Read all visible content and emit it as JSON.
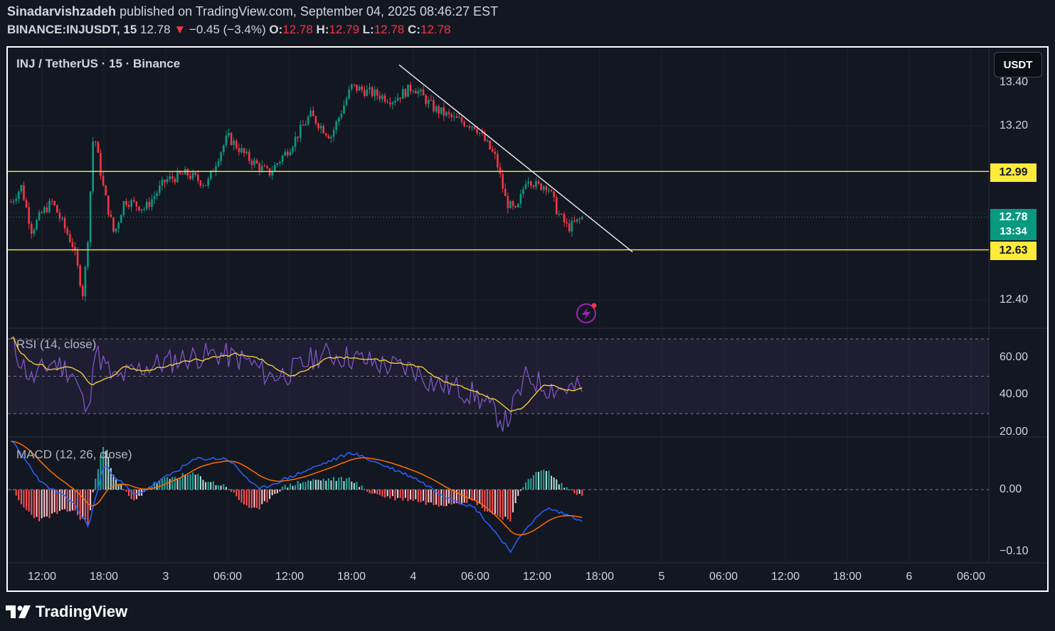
{
  "header": {
    "author": "Sinadarvishzadeh",
    "published": "published on TradingView.com, September 04, 2025 08:46:27 EST",
    "symbol": "BINANCE:INJUSDT, 15",
    "last": "12.78",
    "change": "−0.45 (−3.4%)",
    "o_label": "O:",
    "o_value": "12.78",
    "h_label": "H:",
    "h_value": "12.79",
    "l_label": "L:",
    "l_value": "12.78",
    "c_label": "C:",
    "c_value": "12.78"
  },
  "legend": "INJ / TetherUS · 15 · Binance",
  "currency_button": "USDT",
  "price_tags": {
    "resistance": "12.99",
    "current": "12.78",
    "countdown": "13:34",
    "support": "12.63"
  },
  "price_axis": [
    "13.40",
    "13.20",
    "12.40"
  ],
  "rsi_label": "RSI (14, close)",
  "rsi_axis": [
    "60.00",
    "40.00",
    "20.00"
  ],
  "macd_label": "MACD (12, 26, close)",
  "macd_axis": [
    "0.00",
    "−0.10"
  ],
  "time_axis": [
    "12:00",
    "18:00",
    "3",
    "06:00",
    "12:00",
    "18:00",
    "4",
    "06:00",
    "12:00",
    "18:00",
    "5",
    "06:00",
    "12:00",
    "18:00",
    "6",
    "06:00"
  ],
  "footer": "TradingView",
  "colors": {
    "background": "#131722",
    "up": "#089981",
    "down": "#f23645",
    "level": "#ffeb3b",
    "trendline": "#ffffff",
    "rsi": "#7e57c2",
    "rsi_ma": "#fdd835",
    "macd": "#2962ff",
    "signal": "#ff6d00"
  },
  "chart_data": {
    "type": "candlestick",
    "symbol": "INJUSDT",
    "interval": "15",
    "y_axis_ticks": [
      13.4,
      13.2,
      12.4
    ],
    "horizontal_levels": [
      12.99,
      12.63
    ],
    "last_price": 12.78,
    "trendline": {
      "from": [
        "4 00:00",
        13.48
      ],
      "to": [
        "4 18:30",
        12.62
      ]
    },
    "price_path": [
      [
        "2 09:00",
        12.85
      ],
      [
        "2 10:00",
        12.92
      ],
      [
        "2 11:00",
        12.72
      ],
      [
        "2 12:00",
        12.8
      ],
      [
        "2 13:00",
        12.85
      ],
      [
        "2 14:00",
        12.75
      ],
      [
        "2 15:00",
        12.65
      ],
      [
        "2 16:00",
        12.42
      ],
      [
        "2 16:30",
        12.72
      ],
      [
        "2 17:00",
        13.18
      ],
      [
        "2 18:00",
        12.9
      ],
      [
        "2 19:00",
        12.7
      ],
      [
        "2 20:00",
        12.86
      ],
      [
        "2 22:00",
        12.82
      ],
      [
        "3 00:00",
        12.95
      ],
      [
        "3 02:00",
        12.98
      ],
      [
        "3 04:00",
        12.93
      ],
      [
        "3 05:00",
        13.05
      ],
      [
        "3 06:00",
        13.15
      ],
      [
        "3 08:00",
        13.05
      ],
      [
        "3 10:00",
        12.98
      ],
      [
        "3 12:00",
        13.1
      ],
      [
        "3 14:00",
        13.25
      ],
      [
        "3 16:00",
        13.15
      ],
      [
        "3 18:00",
        13.38
      ],
      [
        "3 20:00",
        13.35
      ],
      [
        "3 22:00",
        13.32
      ],
      [
        "4 00:00",
        13.38
      ],
      [
        "4 02:00",
        13.28
      ],
      [
        "4 04:00",
        13.23
      ],
      [
        "4 06:00",
        13.2
      ],
      [
        "4 08:00",
        13.05
      ],
      [
        "4 09:00",
        12.85
      ],
      [
        "4 10:00",
        12.8
      ],
      [
        "4 11:00",
        12.97
      ],
      [
        "4 12:00",
        12.92
      ],
      [
        "4 13:00",
        12.93
      ],
      [
        "4 14:00",
        12.8
      ],
      [
        "4 15:00",
        12.73
      ],
      [
        "4 16:30",
        12.78
      ]
    ],
    "rsi": {
      "name": "RSI (14, close)",
      "y_axis_ticks": [
        60,
        40,
        20
      ],
      "bands": [
        70,
        50,
        30
      ],
      "values": [
        [
          "2 09:00",
          68
        ],
        [
          "2 11:00",
          48
        ],
        [
          "2 13:00",
          58
        ],
        [
          "2 15:00",
          52
        ],
        [
          "2 16:30",
          28
        ],
        [
          "2 17:00",
          65
        ],
        [
          "2 19:00",
          48
        ],
        [
          "2 22:00",
          55
        ],
        [
          "3 02:00",
          60
        ],
        [
          "3 05:00",
          62
        ],
        [
          "3 08:00",
          58
        ],
        [
          "3 10:00",
          50
        ],
        [
          "3 12:00",
          52
        ],
        [
          "3 15:00",
          62
        ],
        [
          "3 18:00",
          60
        ],
        [
          "3 21:00",
          56
        ],
        [
          "4 00:00",
          54
        ],
        [
          "4 02:00",
          46
        ],
        [
          "4 04:00",
          44
        ],
        [
          "4 06:00",
          40
        ],
        [
          "4 08:00",
          30
        ],
        [
          "4 09:00",
          25
        ],
        [
          "4 11:00",
          50
        ],
        [
          "4 13:00",
          44
        ],
        [
          "4 16:30",
          43
        ]
      ]
    },
    "macd": {
      "name": "MACD (12, 26, close)",
      "y_axis_ticks": [
        0.0,
        -0.1
      ],
      "values": [
        [
          "2 09:00",
          0.08
        ],
        [
          "2 12:00",
          0.01
        ],
        [
          "2 15:00",
          -0.02
        ],
        [
          "2 16:30",
          -0.06
        ],
        [
          "2 18:00",
          0.04
        ],
        [
          "2 21:00",
          -0.01
        ],
        [
          "3 00:00",
          0.02
        ],
        [
          "3 03:00",
          0.05
        ],
        [
          "3 06:00",
          0.05
        ],
        [
          "3 09:00",
          0.0
        ],
        [
          "3 12:00",
          0.02
        ],
        [
          "3 15:00",
          0.04
        ],
        [
          "3 18:00",
          0.06
        ],
        [
          "3 21:00",
          0.04
        ],
        [
          "4 00:00",
          0.02
        ],
        [
          "4 03:00",
          -0.01
        ],
        [
          "4 06:00",
          -0.03
        ],
        [
          "4 08:00",
          -0.07
        ],
        [
          "4 09:30",
          -0.1
        ],
        [
          "4 11:00",
          -0.06
        ],
        [
          "4 13:00",
          -0.03
        ],
        [
          "4 16:30",
          -0.05
        ]
      ]
    }
  }
}
